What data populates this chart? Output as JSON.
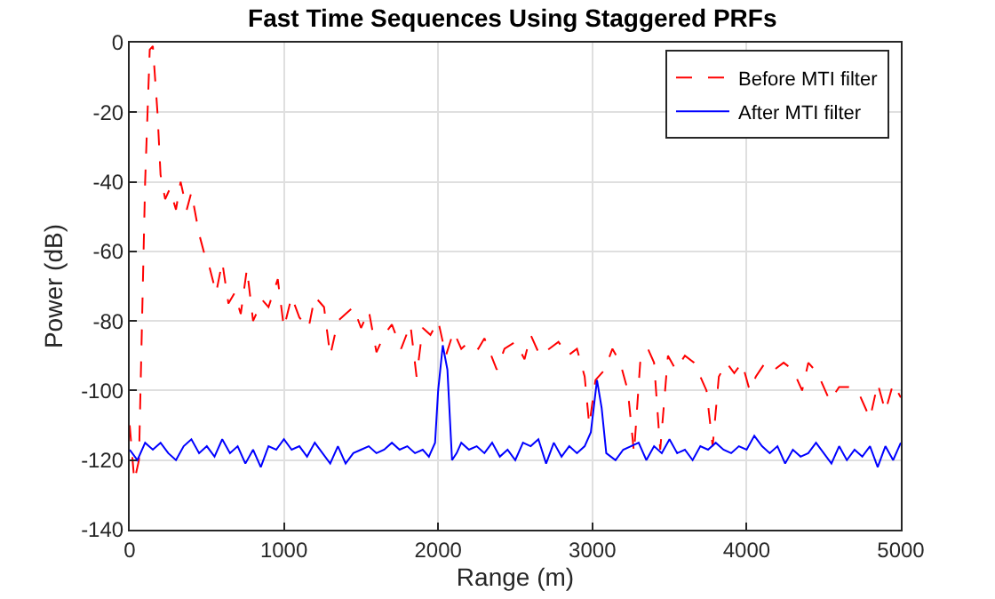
{
  "chart_data": {
    "type": "line",
    "title": "Fast Time Sequences Using Staggered PRFs",
    "xlabel": "Range (m)",
    "ylabel": "Power (dB)",
    "xlim": [
      0,
      5000
    ],
    "xticks": [
      0,
      1000,
      2000,
      3000,
      4000,
      5000
    ],
    "ylim": [
      -140,
      0
    ],
    "yticks": [
      -140,
      -120,
      -100,
      -80,
      -60,
      -40,
      -20,
      0
    ],
    "grid": true,
    "legend": "top right",
    "marker": "none",
    "series": [
      {
        "name": "Before MTI filter",
        "color": "#ff0000",
        "line_style": "dashed",
        "x": [
          0,
          30,
          60,
          100,
          130,
          150,
          180,
          200,
          230,
          260,
          300,
          330,
          370,
          400,
          450,
          480,
          520,
          560,
          600,
          640,
          680,
          720,
          760,
          800,
          860,
          900,
          960,
          1000,
          1050,
          1100,
          1160,
          1200,
          1260,
          1300,
          1350,
          1400,
          1450,
          1500,
          1550,
          1600,
          1650,
          1700,
          1760,
          1820,
          1860,
          1900,
          1950,
          2000,
          2050,
          2100,
          2150,
          2200,
          2260,
          2300,
          2380,
          2430,
          2500,
          2560,
          2600,
          2660,
          2720,
          2780,
          2840,
          2900,
          2950,
          2980,
          3020,
          3080,
          3130,
          3180,
          3230,
          3270,
          3310,
          3360,
          3400,
          3440,
          3490,
          3540,
          3600,
          3660,
          3700,
          3740,
          3780,
          3820,
          3870,
          3920,
          3970,
          4020,
          4060,
          4120,
          4180,
          4240,
          4300,
          4360,
          4400,
          4460,
          4540,
          4600,
          4660,
          4720,
          4800,
          4850,
          4900,
          4950,
          5000
        ],
        "values": [
          -110,
          -126,
          -120,
          -40,
          -2,
          -1,
          -20,
          -38,
          -45,
          -42,
          -48,
          -40,
          -48,
          -43,
          -55,
          -60,
          -65,
          -72,
          -63,
          -75,
          -72,
          -78,
          -65,
          -80,
          -74,
          -76,
          -68,
          -82,
          -73,
          -79,
          -82,
          -73,
          -76,
          -90,
          -80,
          -78,
          -76,
          -82,
          -77,
          -89,
          -84,
          -81,
          -88,
          -81,
          -96,
          -82,
          -84,
          -80,
          -90,
          -83,
          -88,
          -86,
          -88,
          -85,
          -94,
          -88,
          -86,
          -91,
          -84,
          -90,
          -88,
          -86,
          -90,
          -88,
          -96,
          -110,
          -97,
          -94,
          -88,
          -92,
          -100,
          -118,
          -92,
          -88,
          -92,
          -117,
          -90,
          -94,
          -90,
          -92,
          -96,
          -100,
          -116,
          -96,
          -92,
          -95,
          -92,
          -100,
          -96,
          -92,
          -94,
          -92,
          -94,
          -100,
          -92,
          -95,
          -103,
          -99,
          -99,
          -100,
          -108,
          -98,
          -106,
          -98,
          -102
        ]
      },
      {
        "name": "After MTI filter",
        "color": "#0000ff",
        "line_style": "solid",
        "x": [
          0,
          50,
          100,
          150,
          200,
          250,
          300,
          350,
          400,
          450,
          500,
          550,
          600,
          650,
          700,
          750,
          800,
          850,
          900,
          950,
          1000,
          1050,
          1100,
          1150,
          1200,
          1250,
          1300,
          1350,
          1400,
          1450,
          1500,
          1550,
          1600,
          1650,
          1700,
          1750,
          1800,
          1850,
          1900,
          1940,
          1980,
          2000,
          2030,
          2060,
          2090,
          2120,
          2150,
          2200,
          2250,
          2300,
          2350,
          2400,
          2450,
          2500,
          2550,
          2600,
          2650,
          2700,
          2750,
          2800,
          2850,
          2900,
          2950,
          2990,
          3030,
          3060,
          3090,
          3150,
          3200,
          3250,
          3300,
          3350,
          3400,
          3450,
          3500,
          3550,
          3600,
          3650,
          3700,
          3750,
          3800,
          3850,
          3900,
          3950,
          4000,
          4050,
          4100,
          4150,
          4200,
          4250,
          4300,
          4350,
          4400,
          4450,
          4500,
          4550,
          4600,
          4650,
          4700,
          4750,
          4800,
          4850,
          4900,
          4950,
          5000
        ],
        "values": [
          -117,
          -120,
          -115,
          -117,
          -115,
          -118,
          -120,
          -116,
          -114,
          -118,
          -116,
          -119,
          -114,
          -118,
          -116,
          -121,
          -117,
          -122,
          -116,
          -117,
          -114,
          -117,
          -116,
          -119,
          -115,
          -118,
          -121,
          -116,
          -121,
          -118,
          -117,
          -116,
          -118,
          -117,
          -115,
          -117,
          -116,
          -118,
          -117,
          -119,
          -115,
          -100,
          -87,
          -94,
          -120,
          -118,
          -115,
          -117,
          -116,
          -118,
          -115,
          -119,
          -117,
          -120,
          -115,
          -116,
          -114,
          -121,
          -115,
          -119,
          -116,
          -118,
          -116,
          -112,
          -97,
          -105,
          -118,
          -120,
          -117,
          -116,
          -115,
          -120,
          -116,
          -118,
          -114,
          -118,
          -117,
          -120,
          -116,
          -117,
          -115,
          -117,
          -118,
          -116,
          -117,
          -113,
          -116,
          -118,
          -116,
          -121,
          -117,
          -119,
          -118,
          -115,
          -118,
          -121,
          -116,
          -120,
          -117,
          -119,
          -116,
          -122,
          -116,
          -120,
          -115
        ]
      }
    ]
  }
}
